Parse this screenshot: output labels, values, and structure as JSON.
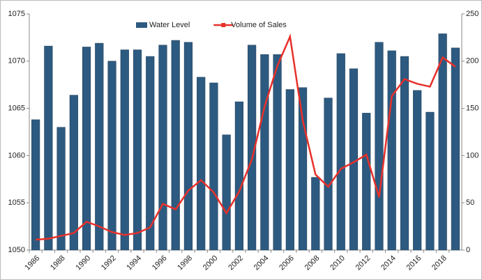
{
  "chart_data": {
    "type": "bar+line",
    "categories": [
      "1986",
      null,
      "1988",
      null,
      "1990",
      null,
      "1992",
      null,
      "1994",
      null,
      "1996",
      null,
      "1998",
      null,
      "2000",
      null,
      "2002",
      null,
      "2004",
      null,
      "2006",
      null,
      "2008",
      null,
      "2010",
      null,
      "2012",
      null,
      "2014",
      null,
      "2016",
      null,
      "2018",
      null
    ],
    "series": [
      {
        "name": "Water Level",
        "color": "#2d5a80",
        "type": "bar",
        "axis": "y",
        "values": [
          1063.8,
          1071.6,
          1063.0,
          1066.4,
          1071.5,
          1071.9,
          1070.0,
          1071.2,
          1071.2,
          1070.5,
          1071.7,
          1072.2,
          1072.0,
          1068.3,
          1067.7,
          1062.2,
          1065.7,
          1071.7,
          1070.7,
          1070.7,
          1067.0,
          1067.2,
          1057.7,
          1066.1,
          1070.8,
          1069.2,
          1064.5,
          1072.0,
          1071.1,
          1070.5,
          1066.9,
          1064.6,
          1072.9,
          1071.4
        ]
      },
      {
        "name": "Volume of Sales",
        "color": "#e8302a",
        "type": "line",
        "axis": "y2",
        "values": [
          11,
          12,
          15,
          18,
          30,
          25,
          19,
          16,
          18,
          24,
          49,
          43,
          63,
          74,
          61,
          39,
          62,
          96,
          152,
          195,
          226,
          137,
          80,
          67,
          86,
          93,
          101,
          56,
          163,
          181,
          176,
          173,
          204,
          194
        ]
      }
    ],
    "ylim": [
      1050,
      1075
    ],
    "yticks": [
      1050,
      1055,
      1060,
      1065,
      1070,
      1075
    ],
    "y2lim": [
      0,
      250
    ],
    "y2ticks": [
      0,
      50,
      100,
      150,
      200,
      250
    ],
    "legend": "top"
  }
}
